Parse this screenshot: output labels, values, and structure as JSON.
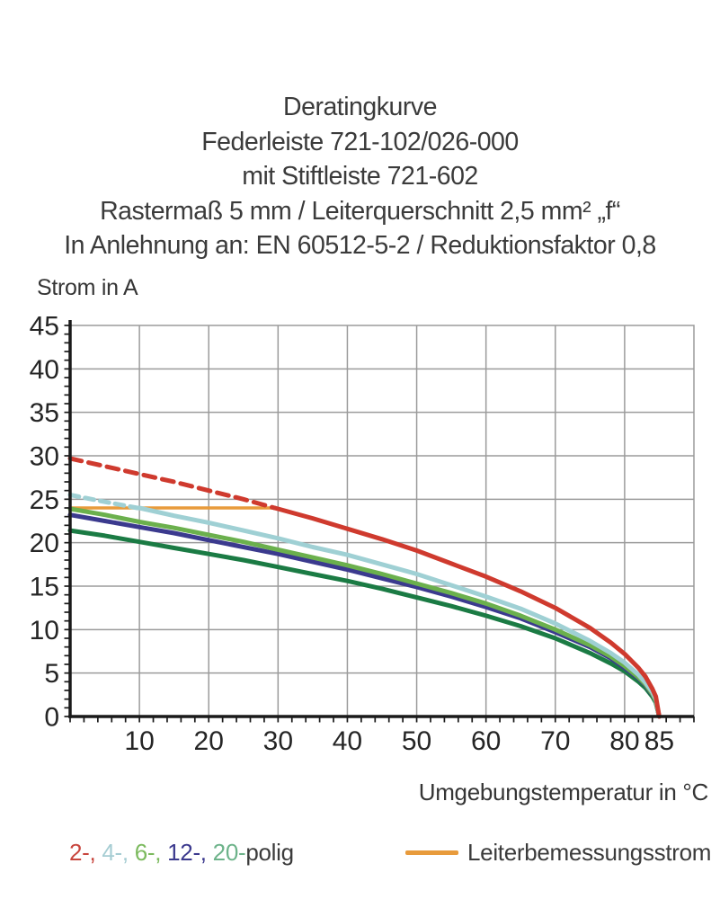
{
  "title_lines": [
    "Deratingkurve",
    "Federleiste 721-102/026-000",
    "mit Stiftleiste 721-602",
    "Rastermaß 5 mm / Leiterquerschnitt 2,5 mm² „f“",
    "In Anlehnung an: EN 60512-5-2 / Reduktionsfaktor 0,8"
  ],
  "chart_data": {
    "type": "line",
    "title": "Deratingkurve Federleiste 721-102/026-000 mit Stiftleiste 721-602",
    "xlabel": "Umgebungstemperatur in °C",
    "ylabel": "Strom in A",
    "xlim": [
      0,
      90
    ],
    "ylim": [
      0,
      45
    ],
    "grid": true,
    "grid_color": "#9b9b9b",
    "axis_color": "#1a1a1a",
    "max_temperature": 85,
    "x_gridlines": [
      10,
      20,
      30,
      40,
      50,
      60,
      70,
      80
    ],
    "y_gridlines": [
      5,
      10,
      15,
      20,
      25,
      30,
      35,
      40
    ],
    "x_minor_tick_step": 2,
    "y_minor_tick_step": 1,
    "x_ticks": [
      {
        "v": 10,
        "label": "10"
      },
      {
        "v": 20,
        "label": "20"
      },
      {
        "v": 30,
        "label": "30"
      },
      {
        "v": 40,
        "label": "40"
      },
      {
        "v": 50,
        "label": "50"
      },
      {
        "v": 60,
        "label": "60"
      },
      {
        "v": 70,
        "label": "70"
      },
      {
        "v": 80,
        "label": "80"
      },
      {
        "v": 85,
        "label": "85"
      }
    ],
    "y_ticks": [
      {
        "v": 45,
        "label": "45"
      },
      {
        "v": 40,
        "label": "40"
      },
      {
        "v": 35,
        "label": "35"
      },
      {
        "v": 30,
        "label": "30"
      },
      {
        "v": 25,
        "label": "25"
      },
      {
        "v": 20,
        "label": "20"
      },
      {
        "v": 15,
        "label": "15"
      },
      {
        "v": 10,
        "label": "10"
      },
      {
        "v": 5,
        "label": "5"
      },
      {
        "v": 0,
        "label": "0"
      }
    ],
    "rated_line": {
      "label": "Leiterbemessungsstrom",
      "value": 24,
      "color": "#e89b3c",
      "t_start": 0,
      "t_end": 29.5
    },
    "series": [
      {
        "name": "2-polig",
        "color": "#cf3a2e",
        "width": 5,
        "dash": "13 8",
        "solid_from": 29.5,
        "points": [
          [
            0,
            29.7
          ],
          [
            5,
            28.8
          ],
          [
            10,
            27.9
          ],
          [
            15,
            27.0
          ],
          [
            20,
            26.0
          ],
          [
            25,
            25.0
          ],
          [
            30,
            23.9
          ],
          [
            35,
            22.8
          ],
          [
            40,
            21.6
          ],
          [
            45,
            20.4
          ],
          [
            50,
            19.1
          ],
          [
            55,
            17.6
          ],
          [
            60,
            16.1
          ],
          [
            65,
            14.4
          ],
          [
            70,
            12.5
          ],
          [
            75,
            10.2
          ],
          [
            78,
            8.5
          ],
          [
            80,
            7.2
          ],
          [
            82,
            5.6
          ],
          [
            83,
            4.6
          ],
          [
            84,
            3.2
          ],
          [
            84.5,
            2.3
          ],
          [
            85,
            0
          ]
        ]
      },
      {
        "name": "4-polig",
        "color": "#9fd0d4",
        "width": 5,
        "dash": "10 7",
        "solid_from": 9.7,
        "points": [
          [
            0,
            25.5
          ],
          [
            5,
            24.7
          ],
          [
            10,
            24.0
          ],
          [
            15,
            23.1
          ],
          [
            20,
            22.3
          ],
          [
            25,
            21.4
          ],
          [
            30,
            20.5
          ],
          [
            35,
            19.5
          ],
          [
            40,
            18.6
          ],
          [
            45,
            17.5
          ],
          [
            50,
            16.4
          ],
          [
            55,
            15.1
          ],
          [
            60,
            13.8
          ],
          [
            65,
            12.4
          ],
          [
            70,
            10.7
          ],
          [
            75,
            8.7
          ],
          [
            78,
            7.3
          ],
          [
            80,
            6.2
          ],
          [
            82,
            4.8
          ],
          [
            83,
            3.9
          ],
          [
            84,
            2.8
          ],
          [
            84.5,
            2.0
          ],
          [
            85,
            0
          ]
        ]
      },
      {
        "name": "6-polig",
        "color": "#6bb04d",
        "width": 5,
        "dash": null,
        "solid_from": null,
        "points": [
          [
            0,
            23.9
          ],
          [
            5,
            23.2
          ],
          [
            10,
            22.4
          ],
          [
            15,
            21.7
          ],
          [
            20,
            20.9
          ],
          [
            25,
            20.1
          ],
          [
            30,
            19.2
          ],
          [
            35,
            18.3
          ],
          [
            40,
            17.4
          ],
          [
            45,
            16.4
          ],
          [
            50,
            15.3
          ],
          [
            55,
            14.2
          ],
          [
            60,
            13.0
          ],
          [
            65,
            11.6
          ],
          [
            70,
            10.0
          ],
          [
            75,
            8.2
          ],
          [
            78,
            6.9
          ],
          [
            80,
            5.8
          ],
          [
            82,
            4.5
          ],
          [
            83,
            3.7
          ],
          [
            84,
            2.6
          ],
          [
            84.5,
            1.8
          ],
          [
            85,
            0
          ]
        ]
      },
      {
        "name": "12-polig",
        "color": "#3b3a8e",
        "width": 5,
        "dash": null,
        "solid_from": null,
        "points": [
          [
            0,
            23.2
          ],
          [
            5,
            22.5
          ],
          [
            10,
            21.8
          ],
          [
            15,
            21.1
          ],
          [
            20,
            20.3
          ],
          [
            25,
            19.5
          ],
          [
            30,
            18.7
          ],
          [
            35,
            17.8
          ],
          [
            40,
            16.9
          ],
          [
            45,
            15.9
          ],
          [
            50,
            14.9
          ],
          [
            55,
            13.8
          ],
          [
            60,
            12.6
          ],
          [
            65,
            11.3
          ],
          [
            70,
            9.7
          ],
          [
            75,
            8.0
          ],
          [
            78,
            6.7
          ],
          [
            80,
            5.6
          ],
          [
            82,
            4.4
          ],
          [
            83,
            3.6
          ],
          [
            84,
            2.5
          ],
          [
            84.5,
            1.8
          ],
          [
            85,
            0
          ]
        ]
      },
      {
        "name": "20-polig",
        "color": "#1b7b44",
        "width": 5,
        "dash": null,
        "solid_from": null,
        "points": [
          [
            0,
            21.4
          ],
          [
            5,
            20.8
          ],
          [
            10,
            20.1
          ],
          [
            15,
            19.4
          ],
          [
            20,
            18.7
          ],
          [
            25,
            18.0
          ],
          [
            30,
            17.2
          ],
          [
            35,
            16.4
          ],
          [
            40,
            15.6
          ],
          [
            45,
            14.7
          ],
          [
            50,
            13.7
          ],
          [
            55,
            12.7
          ],
          [
            60,
            11.6
          ],
          [
            65,
            10.4
          ],
          [
            70,
            9.0
          ],
          [
            75,
            7.3
          ],
          [
            78,
            6.1
          ],
          [
            80,
            5.2
          ],
          [
            82,
            4.0
          ],
          [
            83,
            3.3
          ],
          [
            84,
            2.3
          ],
          [
            84.5,
            1.6
          ],
          [
            85,
            0
          ]
        ]
      }
    ]
  },
  "legend": {
    "poles": [
      {
        "text": "2-,",
        "color": "#c8463e"
      },
      {
        "text": " 4-,",
        "color": "#a6cdd3"
      },
      {
        "text": " 6-,",
        "color": "#7cba5e"
      },
      {
        "text": " 12-,",
        "color": "#3c3a8e"
      },
      {
        "text": " 20-",
        "color": "#6db38a"
      },
      {
        "text": "polig",
        "color": "#3b3b3b"
      }
    ]
  }
}
